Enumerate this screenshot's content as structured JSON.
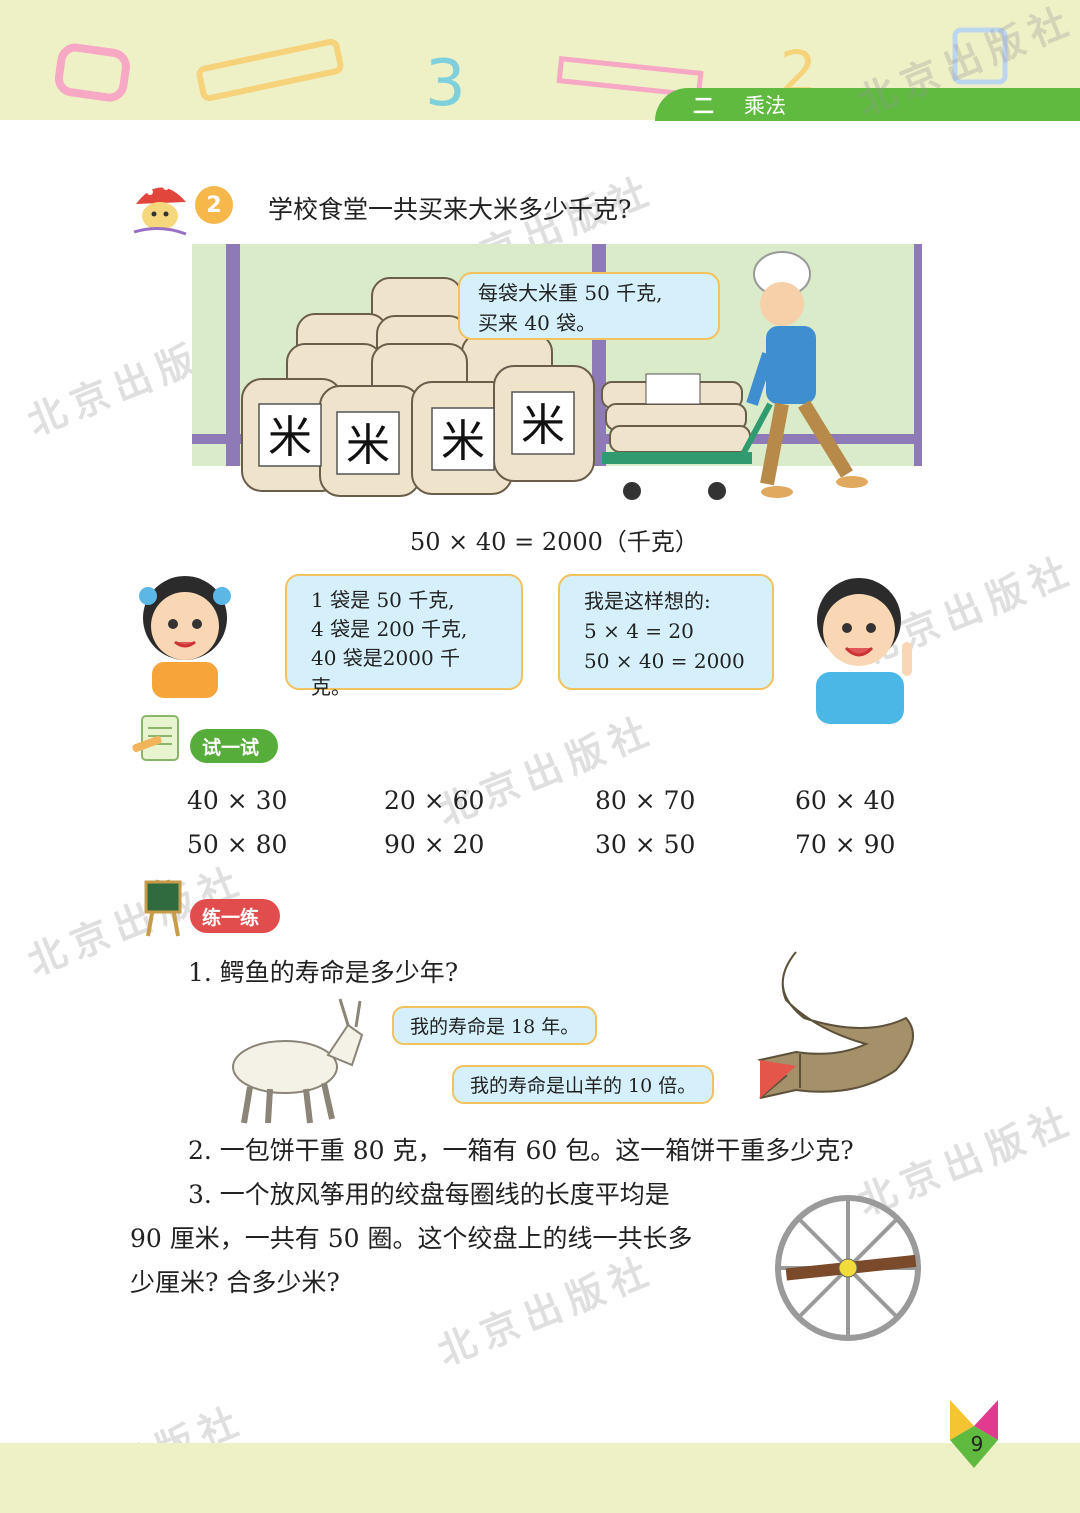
{
  "header": {
    "chapter_number": "二",
    "chapter_title": "乘法"
  },
  "watermark": "北京出版社",
  "example": {
    "number": "2",
    "question": "学校食堂一共买来大米多少千克?",
    "bag_label": "米",
    "chef_bubble": [
      "每袋大米重 50 千克,",
      "买来 40 袋。"
    ],
    "equation": "50 × 40 = 2000（千克）",
    "girl_bubble": [
      "1 袋是 50 千克,",
      "4 袋是 200 千克,",
      "40 袋是2000 千克。"
    ],
    "boy_bubble": [
      "我是这样想的:",
      "5 × 4 = 20",
      "50 × 40 = 2000"
    ]
  },
  "try_section": {
    "label": "试一试",
    "rows": [
      [
        "40 × 30",
        "20 × 60",
        "80 × 70",
        "60 × 40"
      ],
      [
        "50 × 80",
        "90 × 20",
        "30 × 50",
        "70 × 90"
      ]
    ]
  },
  "practice_section": {
    "label": "练一练",
    "q1": "1.  鳄鱼的寿命是多少年?",
    "goat_bubble": "我的寿命是 18 年。",
    "croc_bubble": "我的寿命是山羊的 10 倍。",
    "q2": "2.  一包饼干重 80 克，一箱有 60 包。这一箱饼干重多少克?",
    "q3_lines": [
      "3.  一个放风筝用的绞盘每圈线的长度平均是",
      "90 厘米，一共有 50 圈。这个绞盘上的线一共长多",
      "少厘米? 合多少米?"
    ]
  },
  "page_number": "9",
  "colors": {
    "green": "#5fba3f",
    "band": "#eef0c6",
    "bubble_fill": "#d6f0fb",
    "bubble_border": "#f3c15d",
    "red": "#e14c4c"
  }
}
